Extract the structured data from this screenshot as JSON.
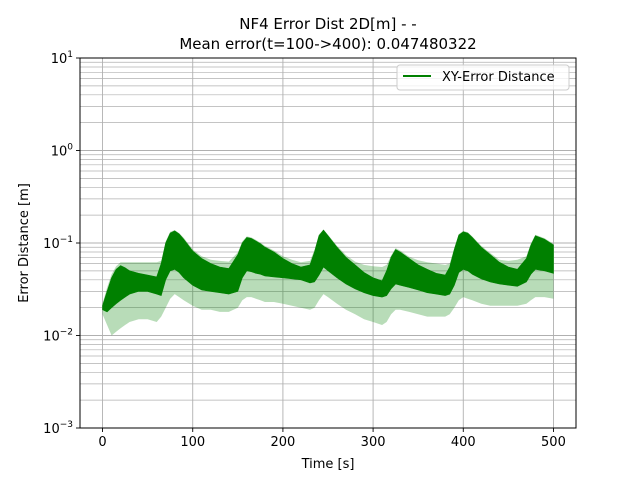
{
  "chart_data": {
    "type": "line",
    "title_line1": "NF4 Error Dist 2D[m] -  -",
    "title_line2": "Mean error(t=100->400): 0.047480322",
    "xlabel": "Time [s]",
    "ylabel": "Error Distance [m]",
    "xlim": [
      -25,
      525
    ],
    "ylim": [
      0.001,
      10
    ],
    "yscale": "log",
    "grid": true,
    "legend_position": "top-right",
    "x_ticks": [
      0,
      100,
      200,
      300,
      400,
      500
    ],
    "x_tick_labels": [
      "0",
      "100",
      "200",
      "300",
      "400",
      "500"
    ],
    "y_ticks": [
      0.001,
      0.01,
      0.1,
      1,
      10
    ],
    "y_tick_labels": [
      {
        "base": "10",
        "exp": "−3"
      },
      {
        "base": "10",
        "exp": "−2"
      },
      {
        "base": "10",
        "exp": "−1"
      },
      {
        "base": "10",
        "exp": "0"
      },
      {
        "base": "10",
        "exp": "1"
      }
    ],
    "series": [
      {
        "name": "XY-Error Distance",
        "color": "#008000",
        "x": [
          0,
          5,
          10,
          15,
          20,
          25,
          30,
          40,
          50,
          60,
          65,
          70,
          75,
          80,
          85,
          90,
          100,
          110,
          120,
          130,
          140,
          150,
          155,
          160,
          165,
          170,
          175,
          180,
          190,
          200,
          210,
          220,
          230,
          235,
          240,
          245,
          250,
          260,
          270,
          280,
          290,
          300,
          310,
          315,
          320,
          325,
          330,
          340,
          350,
          360,
          370,
          380,
          385,
          390,
          395,
          400,
          405,
          410,
          420,
          430,
          440,
          450,
          460,
          470,
          475,
          480,
          490,
          500
        ],
        "upper": [
          0.021,
          0.03,
          0.042,
          0.052,
          0.057,
          0.054,
          0.05,
          0.047,
          0.045,
          0.043,
          0.06,
          0.1,
          0.128,
          0.135,
          0.125,
          0.11,
          0.082,
          0.068,
          0.06,
          0.055,
          0.053,
          0.075,
          0.1,
          0.115,
          0.112,
          0.105,
          0.098,
          0.09,
          0.08,
          0.068,
          0.06,
          0.055,
          0.058,
          0.08,
          0.12,
          0.138,
          0.12,
          0.09,
          0.07,
          0.058,
          0.048,
          0.042,
          0.039,
          0.05,
          0.07,
          0.085,
          0.08,
          0.068,
          0.058,
          0.052,
          0.047,
          0.045,
          0.055,
          0.085,
          0.122,
          0.132,
          0.128,
          0.115,
          0.09,
          0.075,
          0.062,
          0.055,
          0.052,
          0.068,
          0.095,
          0.12,
          0.11,
          0.095
        ],
        "lower": [
          0.019,
          0.018,
          0.02,
          0.022,
          0.024,
          0.026,
          0.028,
          0.03,
          0.03,
          0.028,
          0.027,
          0.04,
          0.05,
          0.052,
          0.048,
          0.042,
          0.035,
          0.031,
          0.03,
          0.029,
          0.028,
          0.03,
          0.042,
          0.05,
          0.049,
          0.047,
          0.046,
          0.044,
          0.043,
          0.042,
          0.041,
          0.04,
          0.037,
          0.038,
          0.045,
          0.055,
          0.05,
          0.042,
          0.036,
          0.032,
          0.029,
          0.027,
          0.026,
          0.027,
          0.032,
          0.036,
          0.035,
          0.033,
          0.031,
          0.029,
          0.028,
          0.027,
          0.028,
          0.035,
          0.048,
          0.052,
          0.05,
          0.046,
          0.041,
          0.038,
          0.036,
          0.035,
          0.034,
          0.038,
          0.046,
          0.052,
          0.05,
          0.047
        ],
        "faint_lower": [
          0.017,
          0.013,
          0.01,
          0.011,
          0.012,
          0.013,
          0.014,
          0.015,
          0.015,
          0.014,
          0.016,
          0.02,
          0.025,
          0.028,
          0.026,
          0.024,
          0.021,
          0.019,
          0.019,
          0.018,
          0.018,
          0.02,
          0.024,
          0.026,
          0.026,
          0.025,
          0.024,
          0.023,
          0.023,
          0.022,
          0.021,
          0.02,
          0.019,
          0.02,
          0.024,
          0.028,
          0.026,
          0.022,
          0.019,
          0.017,
          0.015,
          0.014,
          0.013,
          0.014,
          0.017,
          0.019,
          0.019,
          0.018,
          0.017,
          0.016,
          0.016,
          0.016,
          0.017,
          0.02,
          0.024,
          0.026,
          0.025,
          0.024,
          0.022,
          0.021,
          0.021,
          0.021,
          0.021,
          0.022,
          0.024,
          0.026,
          0.026,
          0.025
        ],
        "faint_upper": [
          0.022,
          0.033,
          0.046,
          0.056,
          0.062,
          0.062,
          0.062,
          0.062,
          0.062,
          0.062,
          0.064,
          0.104,
          0.132,
          0.138,
          0.128,
          0.114,
          0.085,
          0.072,
          0.066,
          0.064,
          0.063,
          0.079,
          0.104,
          0.118,
          0.115,
          0.108,
          0.101,
          0.093,
          0.083,
          0.072,
          0.066,
          0.062,
          0.064,
          0.084,
          0.124,
          0.14,
          0.123,
          0.093,
          0.074,
          0.063,
          0.058,
          0.056,
          0.055,
          0.058,
          0.073,
          0.088,
          0.083,
          0.071,
          0.065,
          0.062,
          0.06,
          0.058,
          0.06,
          0.088,
          0.125,
          0.135,
          0.131,
          0.118,
          0.093,
          0.078,
          0.066,
          0.064,
          0.066,
          0.072,
          0.099,
          0.123,
          0.113,
          0.098
        ]
      }
    ]
  }
}
